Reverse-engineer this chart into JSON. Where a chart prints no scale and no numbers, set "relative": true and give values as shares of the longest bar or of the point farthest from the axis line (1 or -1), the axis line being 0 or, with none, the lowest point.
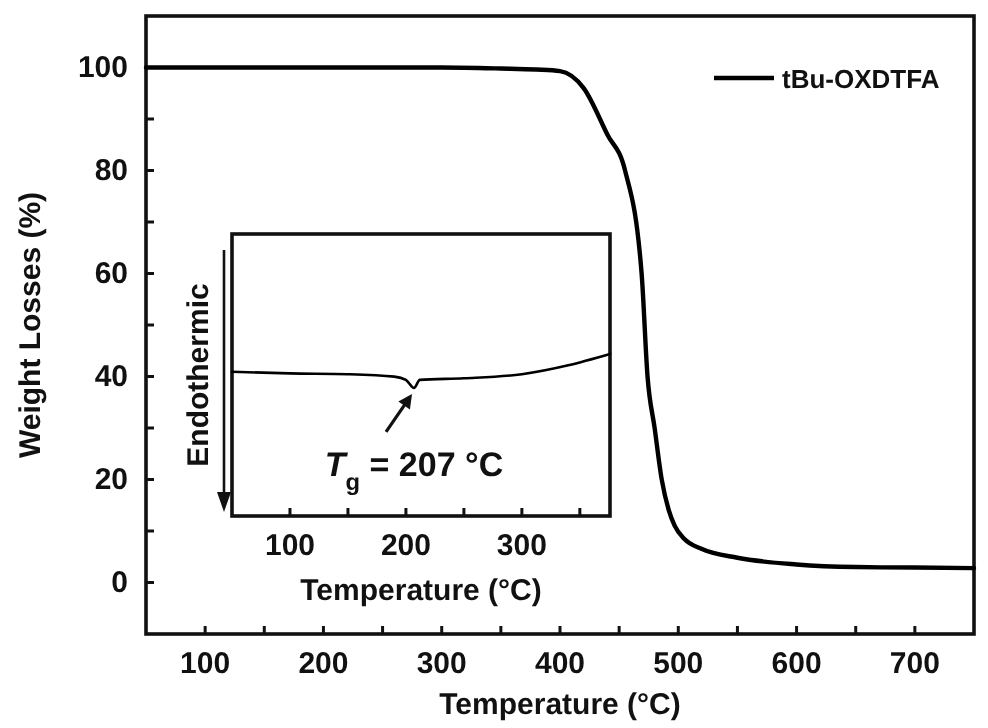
{
  "chart_data": [
    {
      "type": "line",
      "xlabel": "Temperature (°C)",
      "ylabel": "Weight Losses (%)",
      "xlim": [
        50,
        750
      ],
      "ylim": [
        -10,
        110
      ],
      "xticks": [
        100,
        200,
        300,
        400,
        500,
        600,
        700,
        {
          "value": 150,
          "label": null
        },
        {
          "value": 250,
          "label": null
        },
        {
          "value": 350,
          "label": null
        },
        {
          "value": 450,
          "label": null
        },
        {
          "value": 550,
          "label": null
        },
        {
          "value": 650,
          "label": null
        }
      ],
      "yticks": [
        0,
        20,
        40,
        60,
        80,
        100,
        {
          "value": 10,
          "label": null
        },
        {
          "value": 30,
          "label": null
        },
        {
          "value": 50,
          "label": null
        },
        {
          "value": 70,
          "label": null
        },
        {
          "value": 90,
          "label": null
        }
      ],
      "x": [
        50,
        100,
        200,
        300,
        350,
        380,
        400,
        420,
        440,
        455,
        469,
        474,
        480,
        486,
        492,
        497,
        505,
        520,
        550,
        600,
        650,
        700,
        750
      ],
      "series": [
        {
          "name": "tBu-OXDTFA",
          "color": "#000000",
          "values": [
            100,
            100,
            100,
            100,
            99.8,
            99.6,
            99.3,
            96,
            87,
            80,
            60,
            40,
            30,
            20,
            14,
            11,
            8.5,
            6.5,
            4.8,
            3.5,
            3,
            2.9,
            2.8
          ]
        }
      ],
      "legend": "top right"
    },
    {
      "type": "line",
      "xlabel": "Temperature (°C)",
      "ylabel": "Endothermic",
      "relative": true,
      "xlim": [
        50,
        376
      ],
      "xticks": [
        100,
        200,
        300,
        {
          "value": 150,
          "label": null
        },
        {
          "value": 250,
          "label": null
        },
        {
          "value": 350,
          "label": null
        }
      ],
      "x": [
        50,
        100,
        150,
        190,
        200,
        207,
        212,
        250,
        300,
        340,
        376
      ],
      "series": [
        {
          "color": "#000000",
          "values": [
            0.89,
            0.88,
            0.875,
            0.86,
            0.84,
            0.79,
            0.84,
            0.85,
            0.875,
            0.93,
            1
          ]
        }
      ],
      "annotations": [
        {
          "text": "T$_{g}$ = 207 °C",
          "x": 207,
          "y": 0.79
        }
      ]
    }
  ]
}
